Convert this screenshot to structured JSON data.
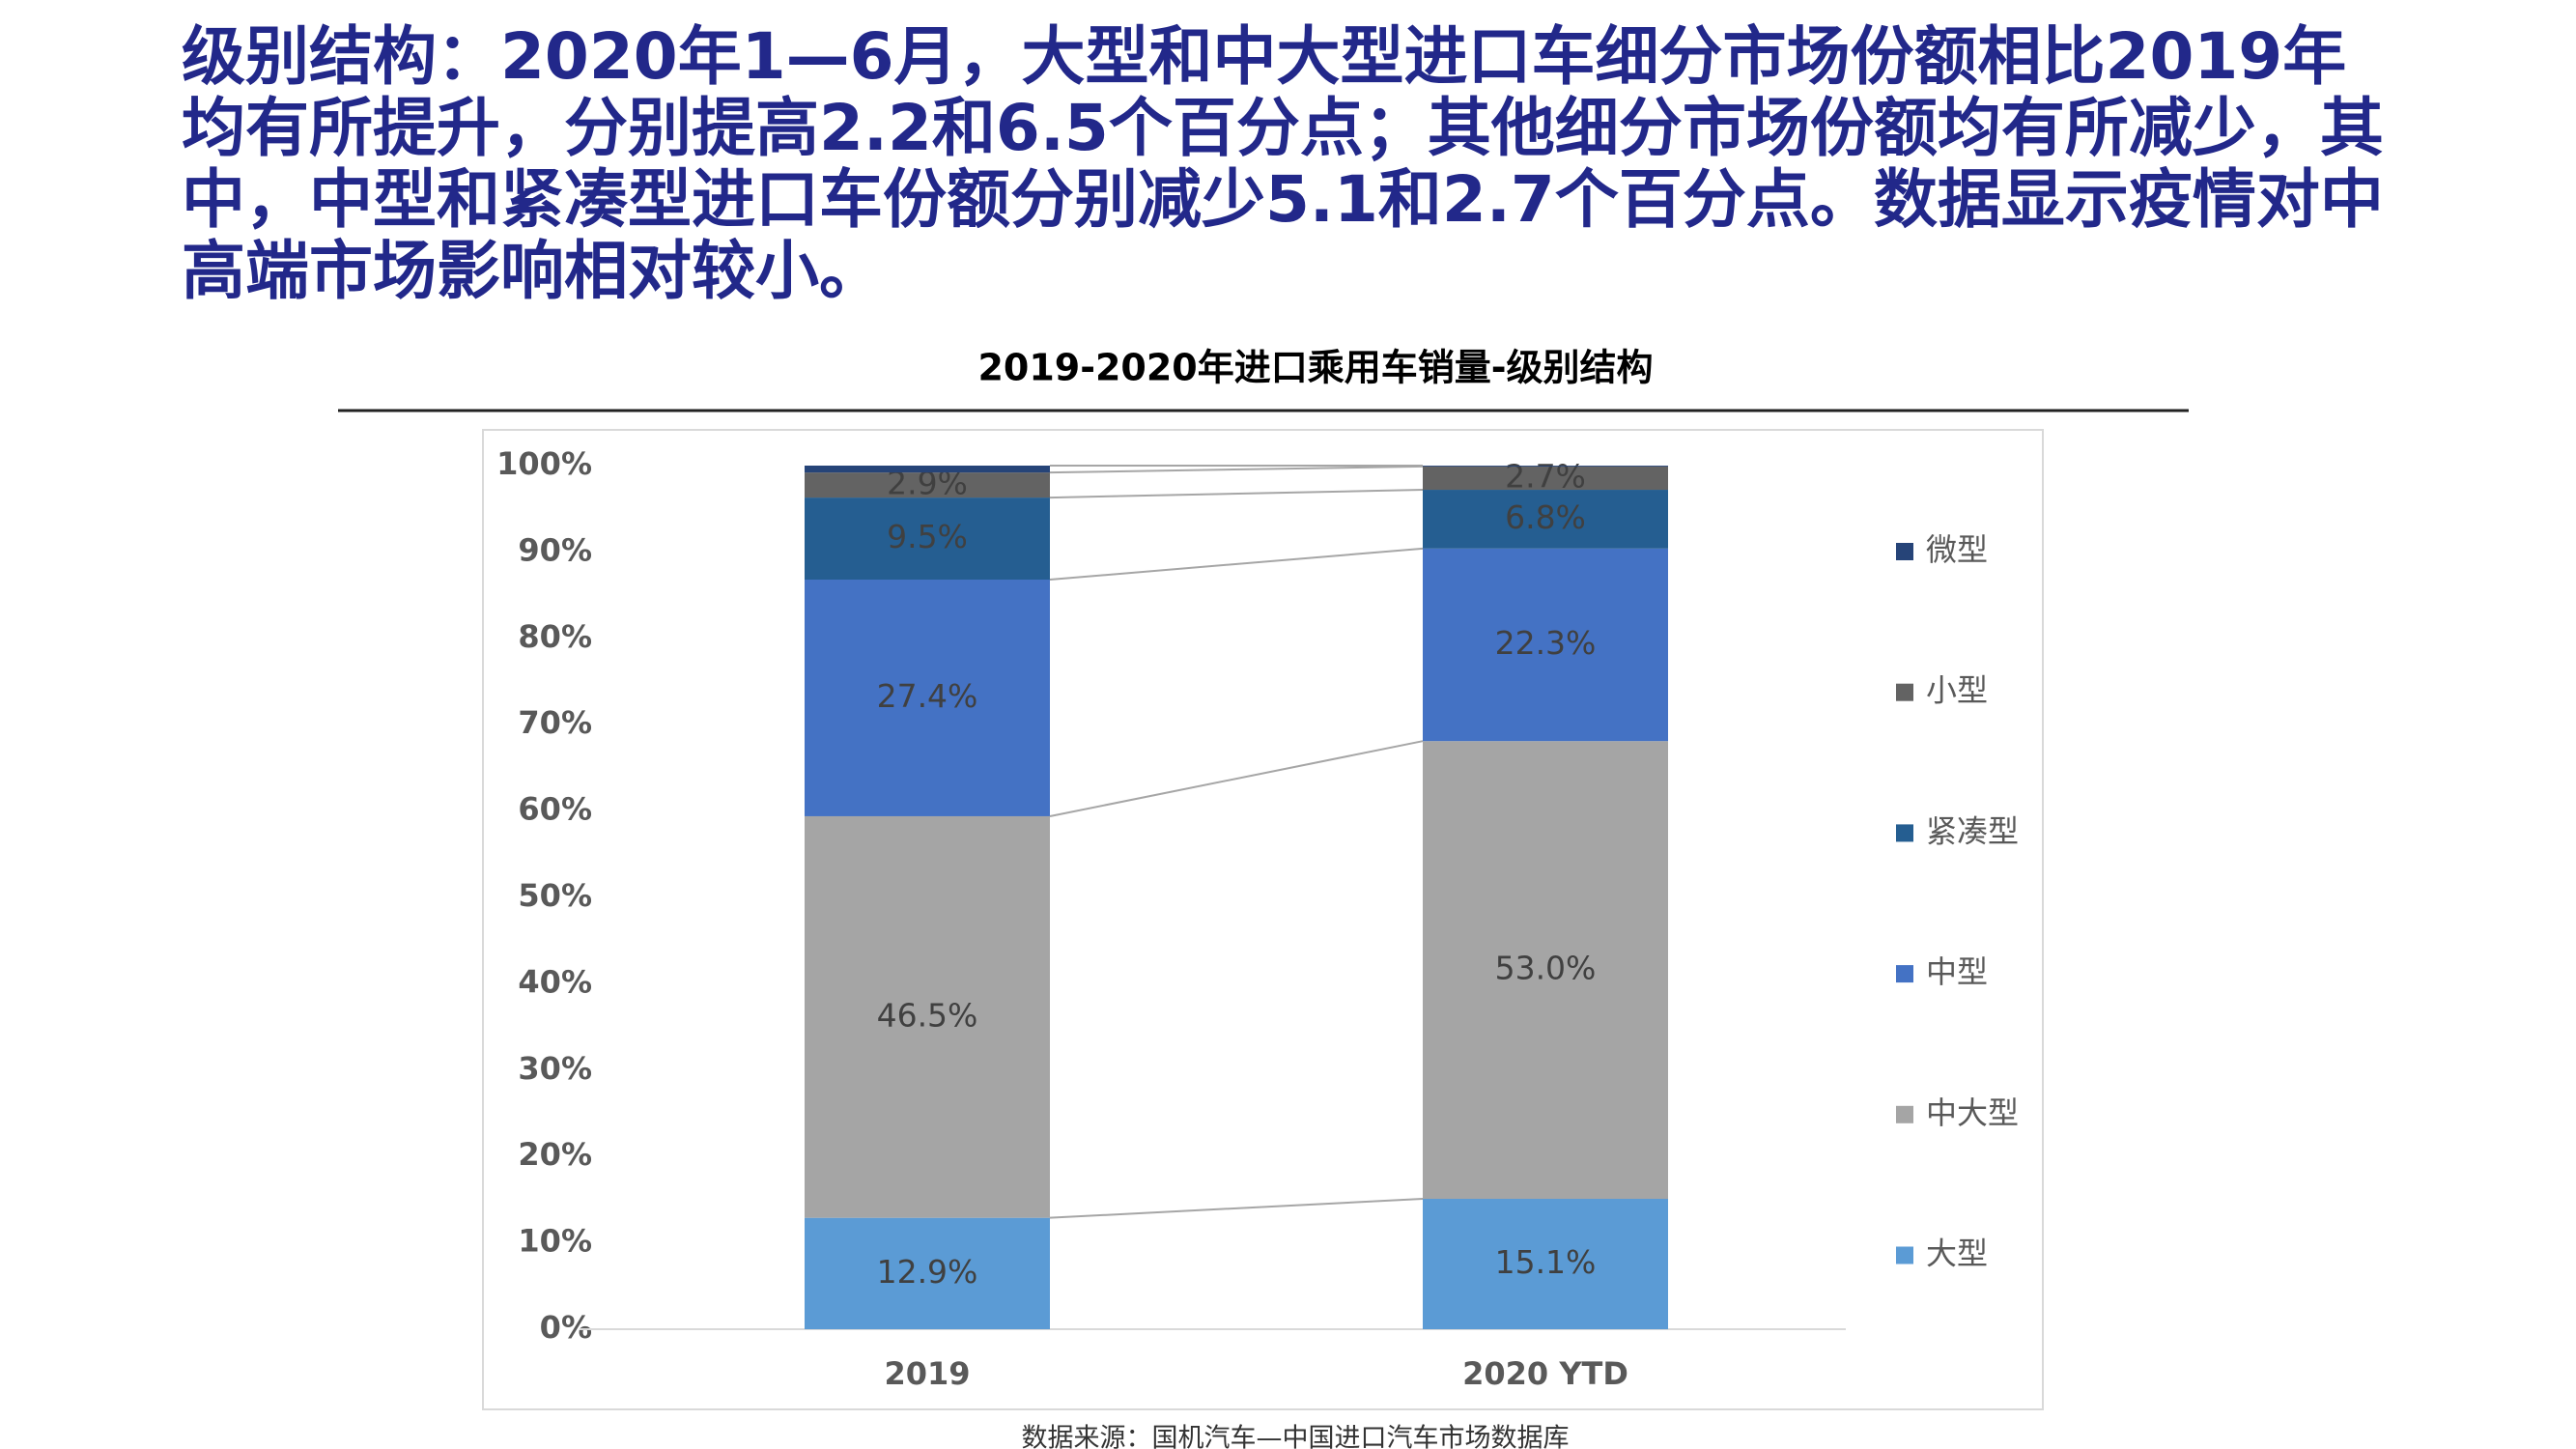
{
  "header": {
    "title": "级别结构：2020年1—6月，大型和中大型进口车细分市场份额相比2019年均有所提升，分别提高2.2和6.5个百分点；其他细分市场份额均有所减少，其中，中型和紧凑型进口车份额分别减少5.1和2.7个百分点。数据显示疫情对中高端市场影响相对较小。"
  },
  "chart_data": {
    "type": "stacked_bar",
    "title": "2019-2020年进口乘用车销量-级别结构",
    "categories": [
      "2019",
      "2020 YTD"
    ],
    "series": [
      {
        "name": "大型",
        "color": "#5b9bd5",
        "values": [
          12.9,
          15.1
        ],
        "value_labels": [
          "12.9%",
          "15.1%"
        ]
      },
      {
        "name": "中大型",
        "color": "#a5a5a5",
        "values": [
          46.5,
          53.0
        ],
        "value_labels": [
          "46.5%",
          "53.0%"
        ]
      },
      {
        "name": "中型",
        "color": "#4472c4",
        "values": [
          27.4,
          22.3
        ],
        "value_labels": [
          "27.4%",
          "22.3%"
        ]
      },
      {
        "name": "紧凑型",
        "color": "#255e91",
        "values": [
          9.5,
          6.8
        ],
        "value_labels": [
          "9.5%",
          "6.8%"
        ]
      },
      {
        "name": "小型",
        "color": "#636363",
        "values": [
          2.9,
          2.7
        ],
        "value_labels": [
          "2.9%",
          "2.7%"
        ]
      },
      {
        "name": "微型",
        "color": "#264478",
        "values": [
          0.8,
          0.1
        ]
      }
    ],
    "ylim": [
      0,
      100
    ],
    "yticks": [
      {
        "value": 0,
        "label": "0%"
      },
      {
        "value": 10,
        "label": "10%"
      },
      {
        "value": 20,
        "label": "20%"
      },
      {
        "value": 30,
        "label": "30%"
      },
      {
        "value": 40,
        "label": "40%"
      },
      {
        "value": 50,
        "label": "50%"
      },
      {
        "value": 60,
        "label": "60%"
      },
      {
        "value": 70,
        "label": "70%"
      },
      {
        "value": 80,
        "label": "80%"
      },
      {
        "value": 90,
        "label": "90%"
      },
      {
        "value": 100,
        "label": "100%"
      }
    ],
    "legend": "right",
    "source": "数据来源：国机汽车—中国进口汽车市场数据库"
  }
}
